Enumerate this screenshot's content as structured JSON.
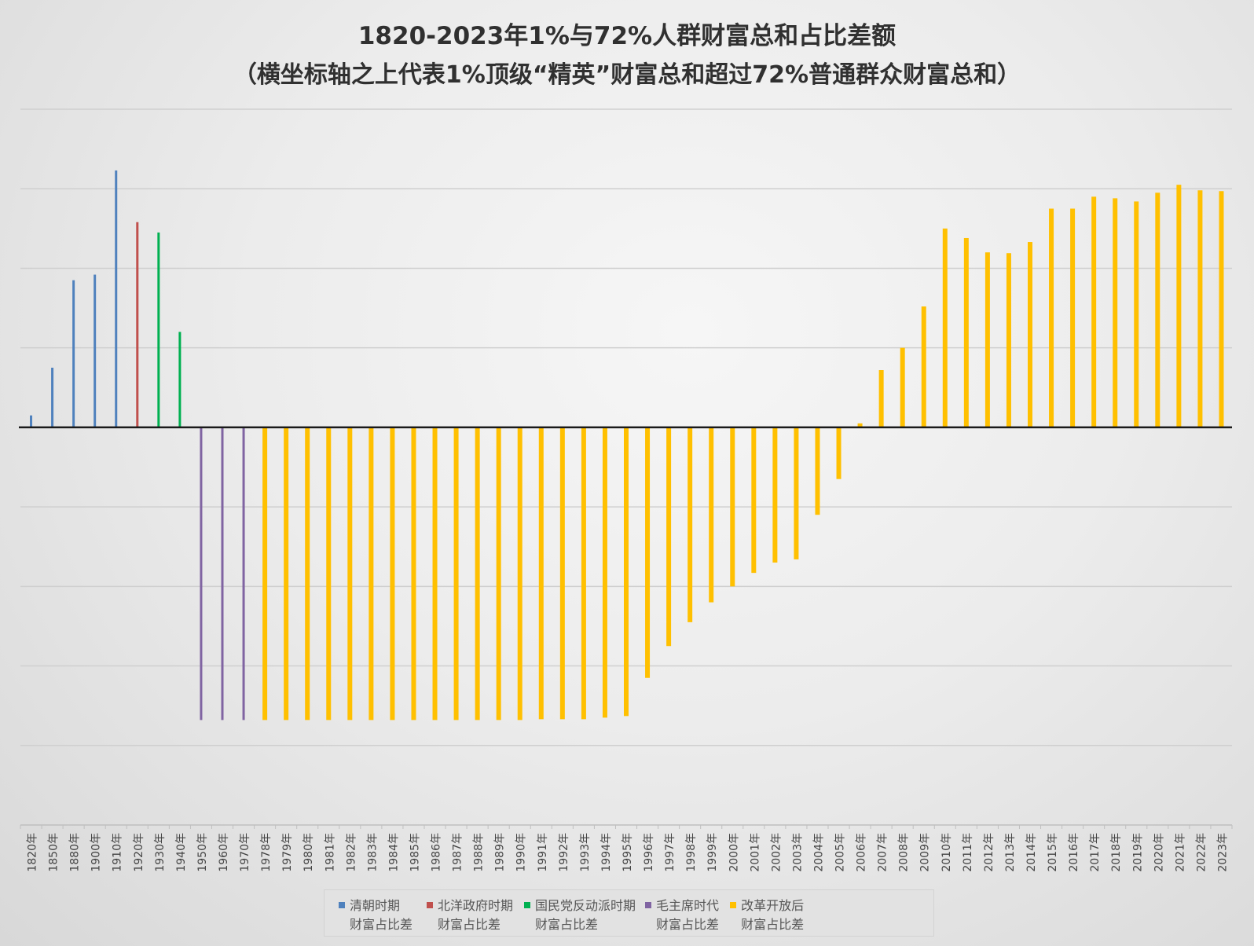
{
  "chart_data": {
    "type": "bar",
    "title": "1820-2023年1%与72%人群财富总和占比差额",
    "subtitle": "（横坐标轴之上代表1%顶级“精英”财富总和超过72%普通群众财富总和）",
    "xlabel": "",
    "ylabel": "",
    "ylim": [
      -5,
      4
    ],
    "grid": true,
    "y_tick_labels_shown": false,
    "legend_position": "bottom",
    "categories": [
      "1820年",
      "1850年",
      "1880年",
      "1900年",
      "1910年",
      "1920年",
      "1930年",
      "1940年",
      "1950年",
      "1960年",
      "1970年",
      "1978年",
      "1979年",
      "1980年",
      "1981年",
      "1982年",
      "1983年",
      "1984年",
      "1985年",
      "1986年",
      "1987年",
      "1988年",
      "1989年",
      "1990年",
      "1991年",
      "1992年",
      "1993年",
      "1994年",
      "1995年",
      "1996年",
      "1997年",
      "1998年",
      "1999年",
      "2000年",
      "2001年",
      "2002年",
      "2003年",
      "2004年",
      "2005年",
      "2006年",
      "2007年",
      "2008年",
      "2009年",
      "2010年",
      "2011年",
      "2012年",
      "2013年",
      "2014年",
      "2015年",
      "2016年",
      "2017年",
      "2018年",
      "2019年",
      "2020年",
      "2021年",
      "2022年",
      "2023年"
    ],
    "series": [
      {
        "name": "清朝时期\n财富占比差",
        "color": "#4f81bd",
        "values": [
          0.15,
          0.75,
          1.85,
          1.92,
          3.23,
          null,
          null,
          null,
          null,
          null,
          null,
          null,
          null,
          null,
          null,
          null,
          null,
          null,
          null,
          null,
          null,
          null,
          null,
          null,
          null,
          null,
          null,
          null,
          null,
          null,
          null,
          null,
          null,
          null,
          null,
          null,
          null,
          null,
          null,
          null,
          null,
          null,
          null,
          null,
          null,
          null,
          null,
          null,
          null,
          null,
          null,
          null,
          null,
          null,
          null,
          null,
          null
        ]
      },
      {
        "name": "北洋政府时期\n财富占比差",
        "color": "#c0504d",
        "values": [
          null,
          null,
          null,
          null,
          null,
          2.58,
          null,
          null,
          null,
          null,
          null,
          null,
          null,
          null,
          null,
          null,
          null,
          null,
          null,
          null,
          null,
          null,
          null,
          null,
          null,
          null,
          null,
          null,
          null,
          null,
          null,
          null,
          null,
          null,
          null,
          null,
          null,
          null,
          null,
          null,
          null,
          null,
          null,
          null,
          null,
          null,
          null,
          null,
          null,
          null,
          null,
          null,
          null,
          null,
          null,
          null,
          null
        ]
      },
      {
        "name": "国民党反动派时期\n财富占比差",
        "color": "#00b050",
        "values": [
          null,
          null,
          null,
          null,
          null,
          null,
          2.45,
          1.2,
          null,
          null,
          null,
          null,
          null,
          null,
          null,
          null,
          null,
          null,
          null,
          null,
          null,
          null,
          null,
          null,
          null,
          null,
          null,
          null,
          null,
          null,
          null,
          null,
          null,
          null,
          null,
          null,
          null,
          null,
          null,
          null,
          null,
          null,
          null,
          null,
          null,
          null,
          null,
          null,
          null,
          null,
          null,
          null,
          null,
          null,
          null,
          null,
          null
        ]
      },
      {
        "name": "毛主席时代\n财富占比差",
        "color": "#8064a2",
        "values": [
          null,
          null,
          null,
          null,
          null,
          null,
          null,
          null,
          -3.68,
          -3.68,
          -3.68,
          null,
          null,
          null,
          null,
          null,
          null,
          null,
          null,
          null,
          null,
          null,
          null,
          null,
          null,
          null,
          null,
          null,
          null,
          null,
          null,
          null,
          null,
          null,
          null,
          null,
          null,
          null,
          null,
          null,
          null,
          null,
          null,
          null,
          null,
          null,
          null,
          null,
          null,
          null,
          null,
          null,
          null,
          null,
          null,
          null,
          null
        ]
      },
      {
        "name": "改革开放后\n财富占比差",
        "color": "#ffc000",
        "values": [
          null,
          null,
          null,
          null,
          null,
          null,
          null,
          null,
          null,
          null,
          null,
          -3.68,
          -3.68,
          -3.68,
          -3.68,
          -3.68,
          -3.68,
          -3.68,
          -3.68,
          -3.68,
          -3.68,
          -3.68,
          -3.68,
          -3.68,
          -3.67,
          -3.67,
          -3.67,
          -3.65,
          -3.63,
          -3.15,
          -2.75,
          -2.45,
          -2.2,
          -2.0,
          -1.83,
          -1.7,
          -1.66,
          -1.1,
          -0.65,
          0.05,
          0.72,
          1.0,
          1.52,
          2.5,
          2.38,
          2.2,
          2.19,
          2.33,
          2.75,
          2.75,
          2.9,
          2.88,
          2.84,
          2.95,
          3.05,
          2.98,
          2.97
        ]
      }
    ]
  }
}
